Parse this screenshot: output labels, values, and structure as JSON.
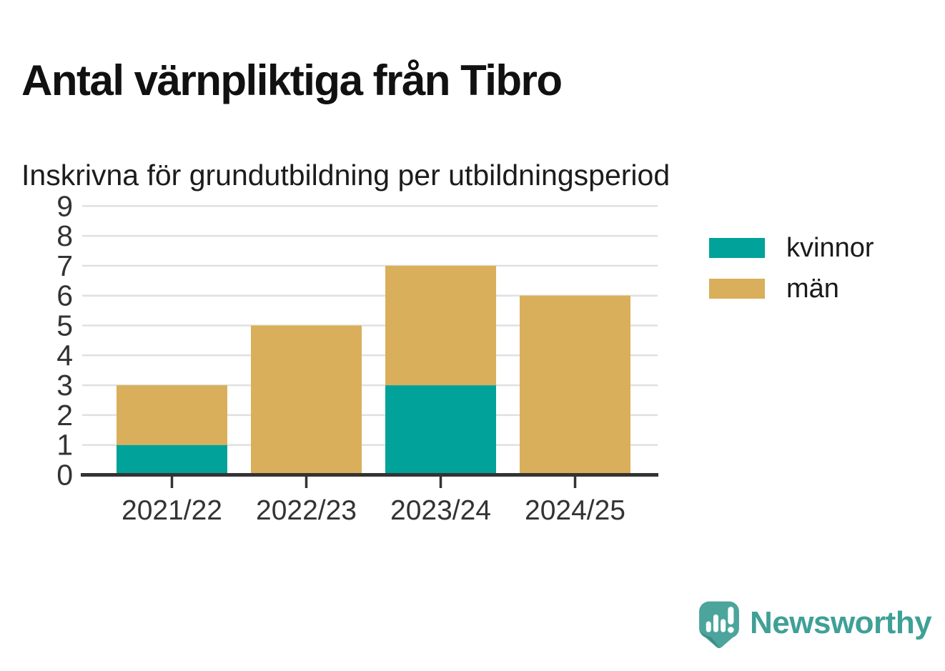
{
  "chart_data": {
    "type": "bar",
    "stacked": true,
    "title": "Antal värnpliktiga från Tibro",
    "subtitle": "Inskrivna för grundutbildning per utbildningsperiod",
    "categories": [
      "2021/22",
      "2022/23",
      "2023/24",
      "2024/25"
    ],
    "series": [
      {
        "name": "kvinnor",
        "color": "#00A29A",
        "values": [
          1,
          0,
          3,
          0
        ]
      },
      {
        "name": "män",
        "color": "#D9AF5B",
        "values": [
          2,
          5,
          4,
          6
        ]
      }
    ],
    "totals": [
      3,
      5,
      7,
      6
    ],
    "xlabel": "",
    "ylabel": "",
    "ylim": [
      0,
      9
    ],
    "yticks": [
      0,
      1,
      2,
      3,
      4,
      5,
      6,
      7,
      8,
      9
    ],
    "grid": true,
    "legend_position": "right",
    "colors": {
      "axis": "#333333",
      "grid": "#E0E0E0",
      "tick_text": "#333333",
      "title_text": "#111111"
    }
  },
  "branding": {
    "logo_text": "Newsworthy",
    "logo_text_color": "#3FA096",
    "icon_color": "#4BA59C",
    "icon_shadow_color": "#38857E",
    "icon_glyph_color": "#FFFFFF"
  }
}
